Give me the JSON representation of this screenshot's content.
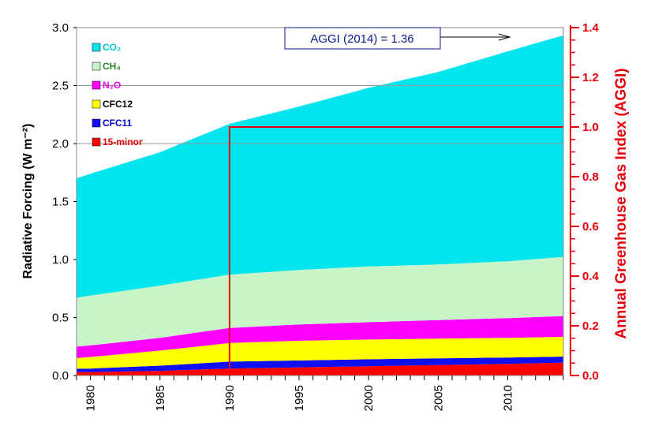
{
  "chart_data": {
    "type": "area",
    "stacked": true,
    "x": [
      1979,
      1980,
      1985,
      1990,
      1995,
      2000,
      2005,
      2010,
      2014
    ],
    "series": [
      {
        "name": "15-minor",
        "color": "#ff0000",
        "values": [
          0.03,
          0.03,
          0.04,
          0.06,
          0.07,
          0.08,
          0.09,
          0.1,
          0.11
        ]
      },
      {
        "name": "CFC11",
        "color": "#1010ee",
        "values": [
          0.03,
          0.03,
          0.045,
          0.06,
          0.06,
          0.06,
          0.058,
          0.055,
          0.053
        ]
      },
      {
        "name": "CFC12",
        "color": "#ffff00",
        "values": [
          0.09,
          0.1,
          0.13,
          0.16,
          0.17,
          0.17,
          0.17,
          0.17,
          0.17
        ]
      },
      {
        "name": "N₂O",
        "color": "#ff00ff",
        "values": [
          0.1,
          0.1,
          0.11,
          0.13,
          0.14,
          0.15,
          0.16,
          0.17,
          0.18
        ]
      },
      {
        "name": "CH₄",
        "color": "#c8f5c8",
        "values": [
          0.42,
          0.43,
          0.45,
          0.46,
          0.47,
          0.48,
          0.48,
          0.49,
          0.51
        ]
      },
      {
        "name": "CO₂",
        "color": "#00e5ee",
        "values": [
          1.03,
          1.05,
          1.15,
          1.3,
          1.41,
          1.54,
          1.66,
          1.81,
          1.91
        ]
      }
    ],
    "xlim": [
      1979,
      2014
    ],
    "ylim": [
      0,
      3.0
    ],
    "ylim_right": [
      0,
      1.4
    ],
    "xticks": [
      1980,
      1985,
      1990,
      1995,
      2000,
      2005,
      2010
    ],
    "yticks": [
      "0.0",
      "0.5",
      "1.0",
      "1.5",
      "2.0",
      "2.5",
      "3.0"
    ],
    "yticks_right": [
      "0.0",
      "0.2",
      "0.4",
      "0.6",
      "0.8",
      "1.0",
      "1.2",
      "1.4"
    ],
    "ylabel": "Radiative Forcing (W m⁻²)",
    "ylabel_right": "Annual Greenhouse Gas Index (AGGI)",
    "gridlines_y": [
      2.0,
      2.5
    ],
    "aggi_line": {
      "year": 1990,
      "value": 1.0
    },
    "legend_position": "top-left",
    "annotation": "AGGI (2014) = 1.36"
  },
  "legend": {
    "co2": "CO₂",
    "ch4": "CH₄",
    "n2o": "N₂O",
    "cfc12": "CFC12",
    "cfc11": "CFC11",
    "minor": "15-minor"
  }
}
